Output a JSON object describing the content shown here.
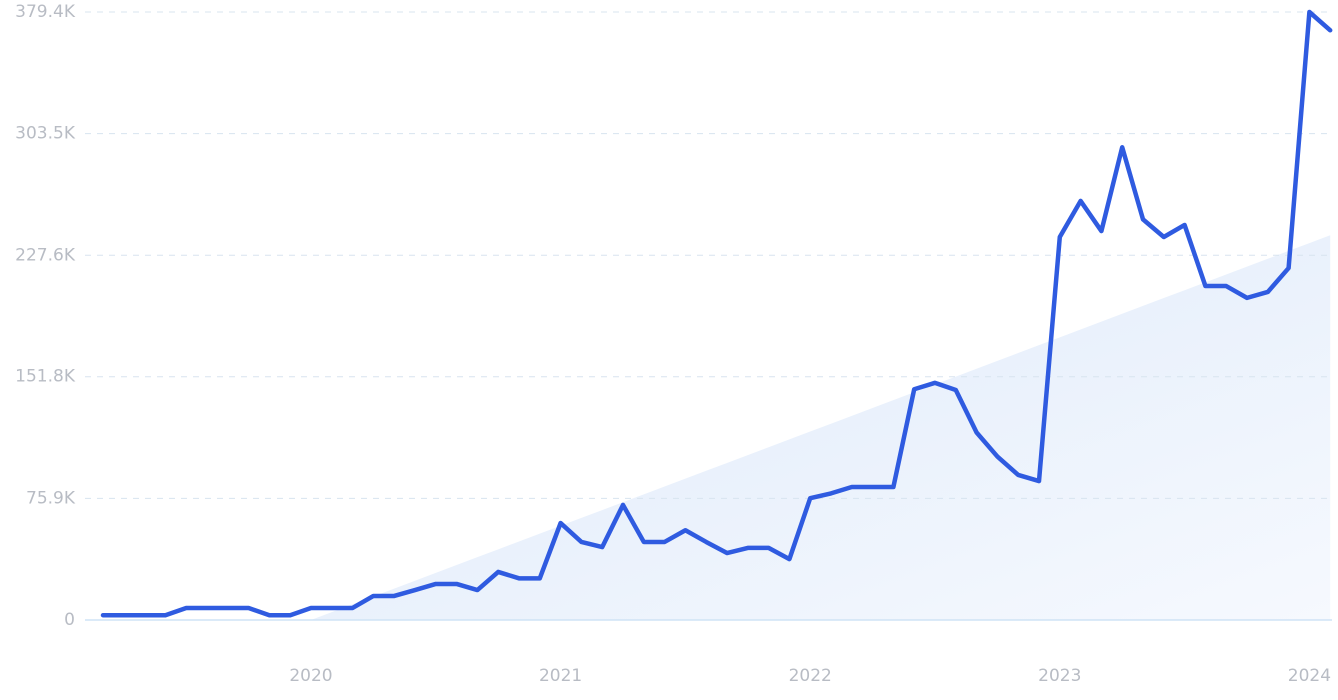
{
  "chart_data": {
    "type": "line",
    "categories": [
      null,
      null,
      null,
      null,
      null,
      null,
      null,
      null,
      null,
      null,
      "2020",
      null,
      null,
      null,
      null,
      null,
      null,
      null,
      null,
      null,
      null,
      null,
      "2021",
      null,
      null,
      null,
      null,
      null,
      null,
      null,
      null,
      null,
      null,
      null,
      "2022",
      null,
      null,
      null,
      null,
      null,
      null,
      null,
      null,
      null,
      null,
      null,
      "2023",
      null,
      null,
      null,
      null,
      null,
      null,
      null,
      null,
      null,
      null,
      null,
      "2024",
      null
    ],
    "series": [
      {
        "color": "#2f5be0",
        "values": [
          3,
          3,
          3,
          3,
          7.5,
          7.5,
          7.5,
          7.5,
          3,
          3,
          7.5,
          7.5,
          7.5,
          15,
          15,
          18.7,
          22.5,
          22.5,
          18.7,
          30,
          26,
          26,
          60.5,
          48.7,
          45.5,
          71.8,
          48.7,
          48.7,
          56,
          48.7,
          41.8,
          45,
          45,
          38,
          76,
          79,
          83,
          83,
          83,
          144,
          148,
          143.5,
          117,
          102,
          90.5,
          86.7,
          239,
          261.5,
          242.7,
          295,
          250,
          239,
          246.5,
          208.4,
          208.4,
          201,
          204.7,
          219.6,
          379.4,
          368
        ]
      }
    ],
    "trend": {
      "color": "#e6effb",
      "values": [
        null,
        null,
        null,
        null,
        null,
        null,
        null,
        null,
        null,
        null,
        0,
        4.9,
        9.8,
        14.7,
        19.6,
        24.5,
        29.4,
        34.3,
        39.2,
        44.1,
        49,
        53.9,
        58.8,
        63.7,
        68.6,
        73.5,
        78.4,
        83.3,
        88.2,
        93.1,
        98,
        102.9,
        107.8,
        112.7,
        117.6,
        122.5,
        127.4,
        132.3,
        137.2,
        142.1,
        147,
        151.9,
        156.8,
        161.7,
        166.6,
        171.5,
        176.4,
        181.3,
        186.2,
        191.1,
        196,
        200.9,
        205.8,
        210.7,
        215.6,
        220.5,
        225.4,
        230.3,
        235.2,
        240.1
      ]
    },
    "ylim": [
      0,
      379.4
    ],
    "yticks": [
      0,
      {
        "value": 75.9,
        "label": "75.9K"
      },
      {
        "value": 151.8,
        "label": "151.8K"
      },
      {
        "value": 227.6,
        "label": "227.6K"
      },
      {
        "value": 303.5,
        "label": "303.5K"
      },
      {
        "value": 379.4,
        "label": "379.4K"
      }
    ],
    "grid": true
  }
}
